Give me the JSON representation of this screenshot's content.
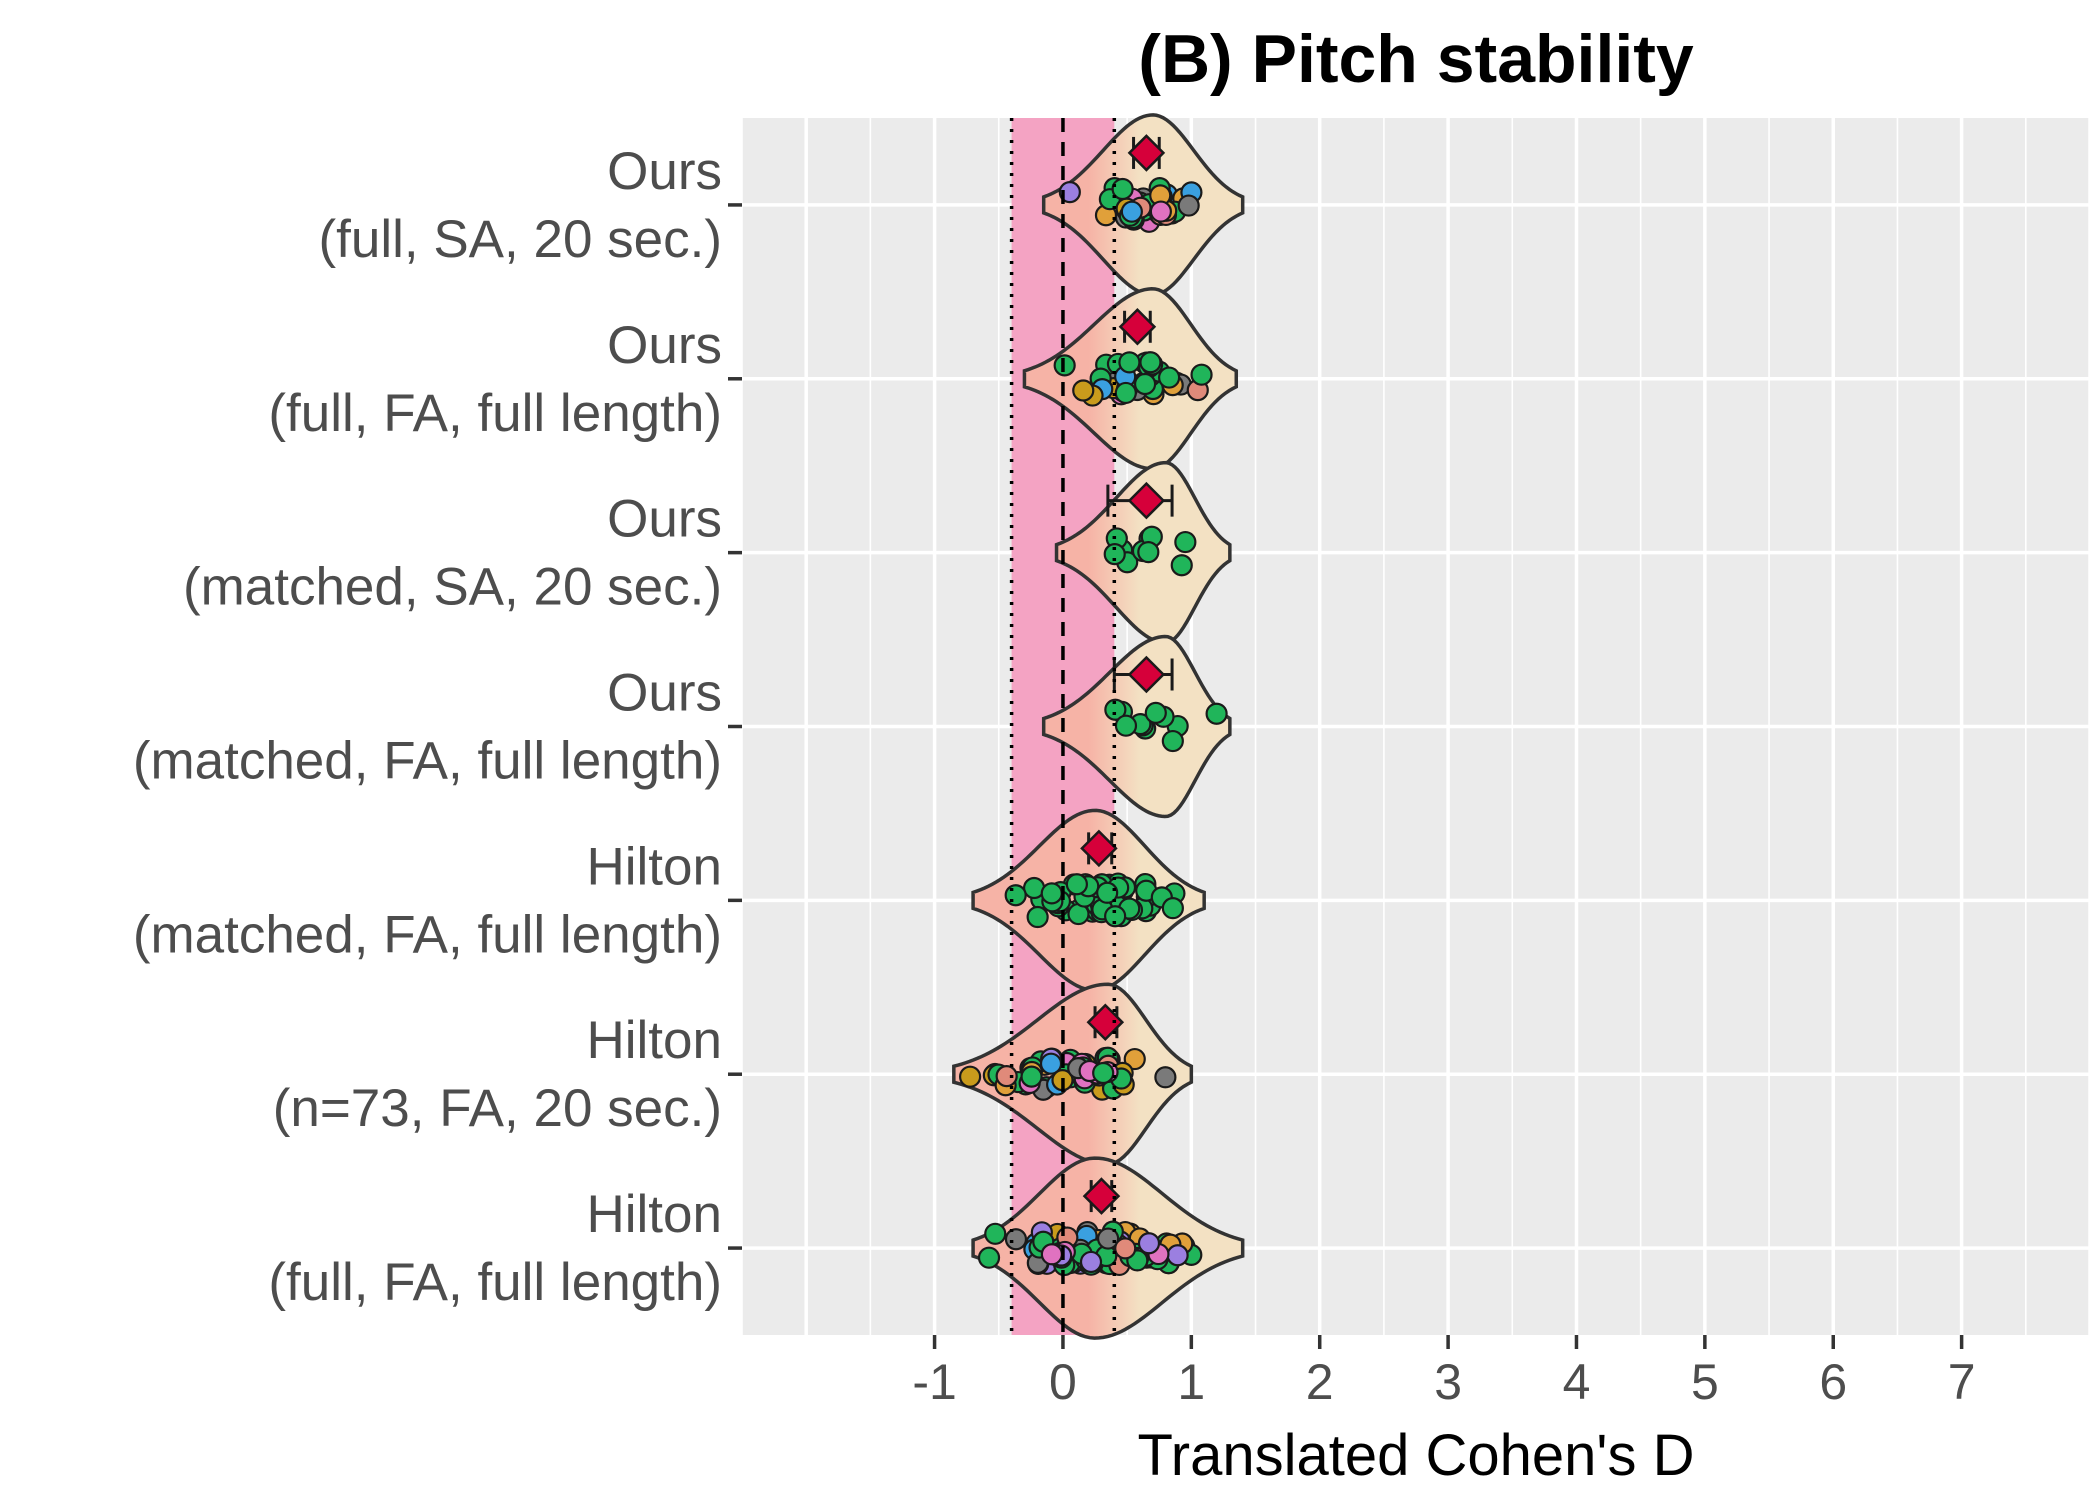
{
  "chart_data": {
    "type": "violin",
    "title": "(B) Pitch stability",
    "xlabel": "Translated Cohen's D",
    "ylabel": "",
    "xlim": [
      -2.5,
      8.0
    ],
    "xticks": [
      "-1",
      "0",
      "1",
      "2",
      "3",
      "4",
      "5",
      "6",
      "7"
    ],
    "grid": true,
    "legend": "none",
    "reference_band": {
      "from": -0.4,
      "to": 0.4,
      "color": "#f4a3c3"
    },
    "reference_lines": {
      "dashed": 0,
      "dotted": [
        -0.4,
        0.4
      ]
    },
    "colors": {
      "panel": "#ebebeb",
      "gridline": "#ffffff",
      "violin_low": "#f6b3a6",
      "violin_high": "#f3e1c3",
      "violin_stroke": "#333333",
      "mean_marker": "#d6003a",
      "point_palette": [
        "#20b55a",
        "#20b55a",
        "#20b55a",
        "#20b55a",
        "#c99b1c",
        "#e0a03a",
        "#3aa0e0",
        "#e072c0",
        "#9b7fe0",
        "#7a7a7a",
        "#e08a7a"
      ]
    },
    "categories": [
      {
        "line1": "Ours",
        "line2": "(full, SA, 20 sec.)",
        "mean": 0.65,
        "ci": [
          0.55,
          0.75
        ],
        "min": -0.15,
        "max": 1.4,
        "peak": 0.7,
        "n": 40,
        "n_groups": 9
      },
      {
        "line1": "Ours",
        "line2": "(full, FA, full length)",
        "mean": 0.58,
        "ci": [
          0.48,
          0.68
        ],
        "min": -0.3,
        "max": 1.35,
        "peak": 0.7,
        "n": 38,
        "n_groups": 9
      },
      {
        "line1": "Ours",
        "line2": "(matched, SA, 20 sec.)",
        "mean": 0.65,
        "ci": [
          0.35,
          0.85
        ],
        "min": -0.05,
        "max": 1.3,
        "peak": 0.8,
        "n": 10,
        "n_groups": 1
      },
      {
        "line1": "Ours",
        "line2": "(matched, FA, full length)",
        "mean": 0.65,
        "ci": [
          0.4,
          0.85
        ],
        "min": -0.15,
        "max": 1.3,
        "peak": 0.8,
        "n": 11,
        "n_groups": 1
      },
      {
        "line1": "Hilton",
        "line2": "(matched, FA, full length)",
        "mean": 0.28,
        "ci": [
          0.2,
          0.38
        ],
        "min": -0.7,
        "max": 1.1,
        "peak": 0.25,
        "n": 55,
        "n_groups": 1
      },
      {
        "line1": "Hilton",
        "line2": "(n=73, FA, 20 sec.)",
        "mean": 0.33,
        "ci": [
          0.25,
          0.42
        ],
        "min": -0.85,
        "max": 1.0,
        "peak": 0.35,
        "n": 60,
        "n_groups": 9
      },
      {
        "line1": "Hilton",
        "line2": "(full, FA, full length)",
        "mean": 0.3,
        "ci": [
          0.22,
          0.38
        ],
        "min": -0.7,
        "max": 1.4,
        "peak": 0.25,
        "n": 90,
        "n_groups": 9
      }
    ]
  }
}
